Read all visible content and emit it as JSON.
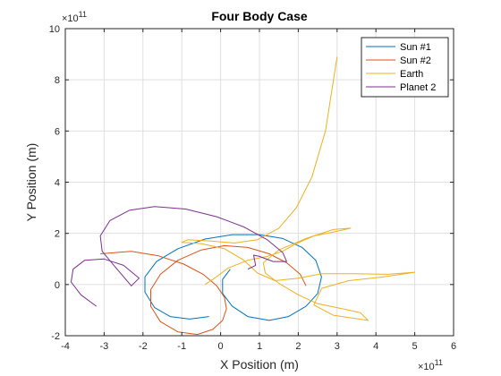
{
  "chart_data": {
    "type": "line",
    "title": "Four Body Case",
    "xlabel": "X Position (m)",
    "ylabel": "Y Position (m)",
    "x_multiplier_label": "×10",
    "x_multiplier_exp": "11",
    "y_multiplier_label": "×10",
    "y_multiplier_exp": "11",
    "xlim": [
      -4,
      6
    ],
    "ylim": [
      -2,
      10
    ],
    "xticks": [
      -4,
      -3,
      -2,
      -1,
      0,
      1,
      2,
      3,
      4,
      5,
      6
    ],
    "yticks": [
      -2,
      0,
      2,
      4,
      6,
      8,
      10
    ],
    "grid": true,
    "legend_position": "top-right",
    "series": [
      {
        "name": "Sun #1",
        "color": "#0072BD",
        "points": [
          [
            -0.3,
            -1.25
          ],
          [
            -0.8,
            -1.35
          ],
          [
            -1.3,
            -1.25
          ],
          [
            -1.7,
            -0.9
          ],
          [
            -1.95,
            -0.3
          ],
          [
            -1.95,
            0.3
          ],
          [
            -1.65,
            0.9
          ],
          [
            -1.1,
            1.4
          ],
          [
            -0.4,
            1.78
          ],
          [
            0.3,
            1.95
          ],
          [
            1.0,
            1.95
          ],
          [
            1.6,
            1.8
          ],
          [
            2.1,
            1.45
          ],
          [
            2.45,
            0.95
          ],
          [
            2.6,
            0.3
          ],
          [
            2.5,
            -0.35
          ],
          [
            2.2,
            -0.85
          ],
          [
            1.75,
            -1.25
          ],
          [
            1.25,
            -1.4
          ],
          [
            0.7,
            -1.25
          ],
          [
            0.3,
            -0.85
          ],
          [
            0.05,
            -0.35
          ],
          [
            0.05,
            0.2
          ],
          [
            0.25,
            0.6
          ]
        ]
      },
      {
        "name": "Sun #2",
        "color": "#D95319",
        "points": [
          [
            2.2,
            -0.05
          ],
          [
            2.05,
            0.4
          ],
          [
            1.7,
            0.85
          ],
          [
            1.25,
            1.2
          ],
          [
            0.7,
            1.45
          ],
          [
            0.1,
            1.52
          ],
          [
            -0.5,
            1.35
          ],
          [
            -1.1,
            0.95
          ],
          [
            -1.55,
            0.4
          ],
          [
            -1.8,
            -0.2
          ],
          [
            -1.8,
            -0.85
          ],
          [
            -1.55,
            -1.45
          ],
          [
            -1.1,
            -1.85
          ],
          [
            -0.6,
            -1.95
          ],
          [
            -0.2,
            -1.75
          ],
          [
            0.05,
            -1.4
          ],
          [
            0.15,
            -0.95
          ],
          [
            0.1,
            -0.5
          ],
          [
            -0.1,
            -0.05
          ],
          [
            -0.45,
            0.4
          ],
          [
            -0.95,
            0.8
          ],
          [
            -1.6,
            1.12
          ],
          [
            -2.3,
            1.3
          ],
          [
            -3.1,
            1.2
          ]
        ]
      },
      {
        "name": "Earth",
        "color": "#EDB120",
        "points": [
          [
            3.0,
            8.9
          ],
          [
            2.7,
            6.0
          ],
          [
            2.35,
            4.2
          ],
          [
            1.95,
            3.0
          ],
          [
            1.5,
            2.2
          ],
          [
            0.95,
            1.75
          ],
          [
            0.35,
            1.62
          ],
          [
            -0.25,
            1.7
          ],
          [
            -0.85,
            1.75
          ],
          [
            -1.0,
            1.65
          ],
          [
            -0.5,
            1.6
          ],
          [
            0.1,
            1.4
          ],
          [
            0.6,
            0.95
          ],
          [
            0.95,
            0.45
          ],
          [
            1.4,
            0.15
          ],
          [
            2.0,
            0.25
          ],
          [
            2.6,
            0.42
          ],
          [
            3.4,
            0.42
          ],
          [
            4.3,
            0.4
          ],
          [
            5.0,
            0.48
          ],
          [
            4.2,
            0.3
          ],
          [
            3.3,
            0.15
          ],
          [
            2.6,
            -0.15
          ],
          [
            2.4,
            -0.8
          ],
          [
            2.9,
            -1.2
          ],
          [
            3.8,
            -1.4
          ],
          [
            3.6,
            -1.1
          ],
          [
            3.0,
            -0.9
          ],
          [
            2.5,
            -0.75
          ],
          [
            2.0,
            -0.4
          ],
          [
            1.5,
            0.05
          ],
          [
            1.15,
            0.45
          ],
          [
            1.1,
            0.85
          ],
          [
            1.5,
            1.35
          ],
          [
            2.2,
            1.8
          ],
          [
            2.9,
            2.15
          ],
          [
            3.35,
            2.2
          ],
          [
            2.9,
            2.05
          ],
          [
            2.4,
            1.9
          ],
          [
            1.95,
            1.6
          ],
          [
            1.6,
            1.3
          ],
          [
            1.2,
            1.1
          ],
          [
            0.7,
            0.95
          ],
          [
            0.2,
            0.65
          ],
          [
            -0.2,
            0.2
          ],
          [
            -0.4,
            0.0
          ]
        ]
      },
      {
        "name": "Planet 2",
        "color": "#7E2F8E",
        "points": [
          [
            -3.2,
            -0.85
          ],
          [
            -3.6,
            -0.4
          ],
          [
            -3.85,
            0.1
          ],
          [
            -3.8,
            0.6
          ],
          [
            -3.5,
            0.95
          ],
          [
            -3.0,
            1.0
          ],
          [
            -2.5,
            0.75
          ],
          [
            -2.1,
            0.25
          ],
          [
            -2.3,
            -0.05
          ],
          [
            -2.75,
            0.75
          ],
          [
            -3.05,
            1.3
          ],
          [
            -3.1,
            1.9
          ],
          [
            -2.85,
            2.5
          ],
          [
            -2.35,
            2.9
          ],
          [
            -1.7,
            3.05
          ],
          [
            -0.9,
            2.95
          ],
          [
            -0.1,
            2.65
          ],
          [
            0.6,
            2.25
          ],
          [
            1.2,
            1.75
          ],
          [
            1.6,
            1.25
          ],
          [
            1.7,
            0.9
          ],
          [
            1.35,
            0.9
          ],
          [
            1.0,
            1.1
          ],
          [
            0.85,
            1.15
          ],
          [
            0.9,
            0.75
          ],
          [
            0.7,
            0.6
          ]
        ]
      }
    ]
  }
}
